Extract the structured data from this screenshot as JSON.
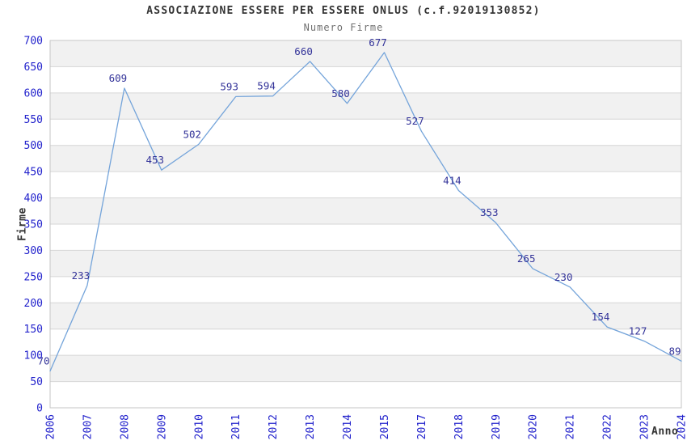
{
  "chart_data": {
    "type": "line",
    "title": "ASSOCIAZIONE ESSERE PER ESSERE ONLUS (c.f.92019130852)",
    "subtitle": "Numero Firme",
    "xlabel": "Anno",
    "ylabel": "Firme",
    "categories": [
      "2006",
      "2007",
      "2008",
      "2009",
      "2010",
      "2011",
      "2012",
      "2013",
      "2014",
      "2015",
      "2017",
      "2018",
      "2019",
      "2020",
      "2021",
      "2022",
      "2023",
      "2024"
    ],
    "values": [
      70,
      233,
      609,
      453,
      502,
      593,
      594,
      660,
      580,
      677,
      527,
      414,
      353,
      265,
      230,
      154,
      127,
      89
    ],
    "ylim": [
      0,
      700
    ],
    "ytick_step": 50,
    "grid": true,
    "grid_stripes": "alternating horizontal bands, gray band directly below 700",
    "legend_position": "none",
    "data_labels_shown": true,
    "colors": {
      "line": "#74a4da",
      "tick_label": "#2222cc",
      "data_label": "#333399",
      "title": "#333333",
      "subtitle": "#707070",
      "axis_title": "#333333",
      "stripe": "#f1f1f1",
      "gridline": "#d6d6d6",
      "plot_border": "#c6c6c6",
      "background": "#ffffff"
    }
  }
}
